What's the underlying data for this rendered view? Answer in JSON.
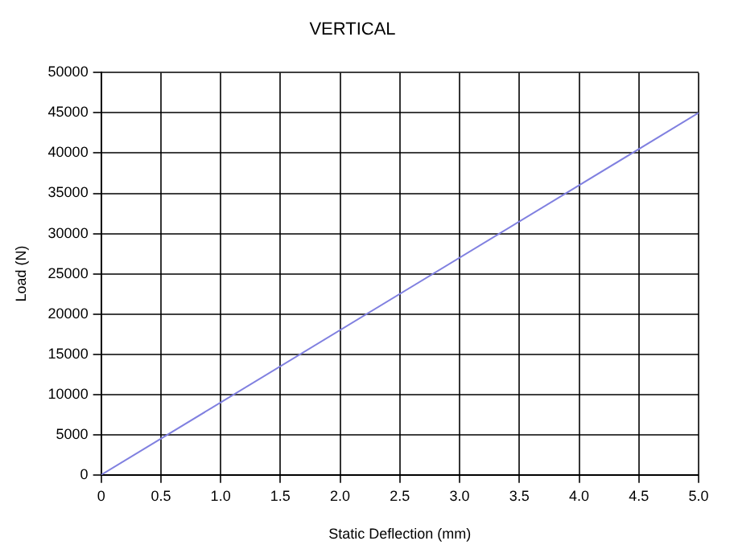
{
  "chart_data": {
    "type": "line",
    "title": "VERTICAL",
    "xlabel": "Static Deflection (mm)",
    "ylabel": "Load (N)",
    "x": [
      0,
      5
    ],
    "series": [
      {
        "color": "#8080e0",
        "values": [
          0,
          45000
        ]
      }
    ],
    "xlim": [
      0,
      5
    ],
    "ylim": [
      0,
      50000
    ],
    "xticks": [
      0,
      0.5,
      {
        "value": 1,
        "label": "1.0"
      },
      1.5,
      {
        "value": 2,
        "label": "2.0"
      },
      2.5,
      {
        "value": 3,
        "label": "3.0"
      },
      3.5,
      {
        "value": 4,
        "label": "4.0"
      },
      4.5,
      {
        "value": 5,
        "label": "5.0"
      }
    ],
    "yticks": [
      0,
      5000,
      10000,
      15000,
      20000,
      25000,
      30000,
      35000,
      40000,
      45000,
      50000
    ],
    "grid": true,
    "legend": false,
    "marker": "none",
    "line_style": "solid"
  }
}
